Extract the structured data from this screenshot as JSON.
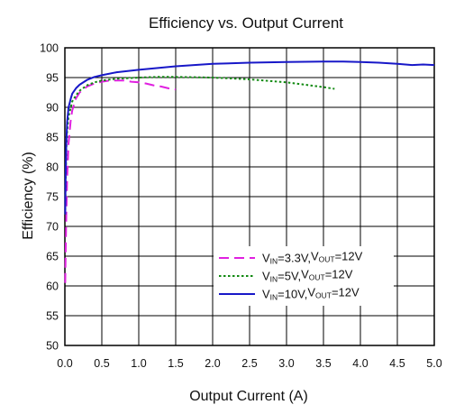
{
  "chart_data": {
    "type": "line",
    "title": "Efficiency vs. Output Current",
    "xlabel": "Output Current (A)",
    "ylabel": "Efficiency (%)",
    "xlim": [
      0,
      5
    ],
    "ylim": [
      50,
      100
    ],
    "x_ticks": [
      "0.0",
      "0.5",
      "1.0",
      "1.5",
      "2.0",
      "2.5",
      "3.0",
      "3.5",
      "4.0",
      "4.5",
      "5.0"
    ],
    "y_ticks": [
      "50",
      "55",
      "60",
      "65",
      "70",
      "75",
      "80",
      "85",
      "90",
      "95",
      "100"
    ],
    "grid": true,
    "legend_position": "bottom-right",
    "series": [
      {
        "legend": {
          "v": "V",
          "vsub": "IN",
          "vval": "=3.3V,",
          "o": "V",
          "osub": "OUT",
          "oval": "=12V"
        },
        "color": "#e020e0",
        "style": "dashed",
        "x": [
          0.005,
          0.01,
          0.02,
          0.03,
          0.05,
          0.08,
          0.1,
          0.15,
          0.2,
          0.3,
          0.4,
          0.5,
          0.6,
          0.7,
          0.8,
          0.9,
          1.0,
          1.1,
          1.2,
          1.3,
          1.4,
          1.5
        ],
        "y": [
          60.5,
          65,
          72,
          78,
          84,
          88,
          89.5,
          91.5,
          92.5,
          93.5,
          94,
          94.3,
          94.5,
          94.5,
          94.5,
          94.3,
          94.2,
          94,
          93.7,
          93.5,
          93.2,
          93
        ]
      },
      {
        "legend": {
          "v": "V",
          "vsub": "IN",
          "vval": "=5V,",
          "o": "V",
          "osub": "OUT",
          "oval": "=12V"
        },
        "color": "#128a12",
        "style": "dotted",
        "x": [
          0.005,
          0.01,
          0.02,
          0.03,
          0.05,
          0.08,
          0.1,
          0.15,
          0.2,
          0.3,
          0.4,
          0.5,
          0.7,
          1.0,
          1.25,
          1.5,
          2.0,
          2.5,
          3.0,
          3.25,
          3.5,
          3.65
        ],
        "y": [
          72,
          77,
          83,
          86,
          88.5,
          90,
          91,
          92,
          92.8,
          93.7,
          94.2,
          94.5,
          94.8,
          95,
          95.1,
          95.1,
          95,
          94.7,
          94.2,
          93.8,
          93.4,
          93.1
        ]
      },
      {
        "legend": {
          "v": "V",
          "vsub": "IN",
          "vval": "=10V,",
          "o": "V",
          "osub": "OUT",
          "oval": "=12V"
        },
        "color": "#1818c8",
        "style": "solid",
        "x": [
          0.005,
          0.01,
          0.02,
          0.03,
          0.05,
          0.08,
          0.1,
          0.15,
          0.2,
          0.3,
          0.4,
          0.5,
          0.7,
          1.0,
          1.5,
          2.0,
          2.5,
          3.0,
          3.5,
          3.75,
          4.0,
          4.25,
          4.5,
          4.7,
          4.85,
          5.0
        ],
        "y": [
          72,
          78,
          84,
          87.5,
          90,
          91.5,
          92.3,
          93.2,
          93.8,
          94.6,
          95.1,
          95.4,
          95.9,
          96.3,
          96.9,
          97.3,
          97.5,
          97.6,
          97.7,
          97.7,
          97.6,
          97.5,
          97.3,
          97.1,
          97.2,
          97.1
        ]
      }
    ]
  }
}
